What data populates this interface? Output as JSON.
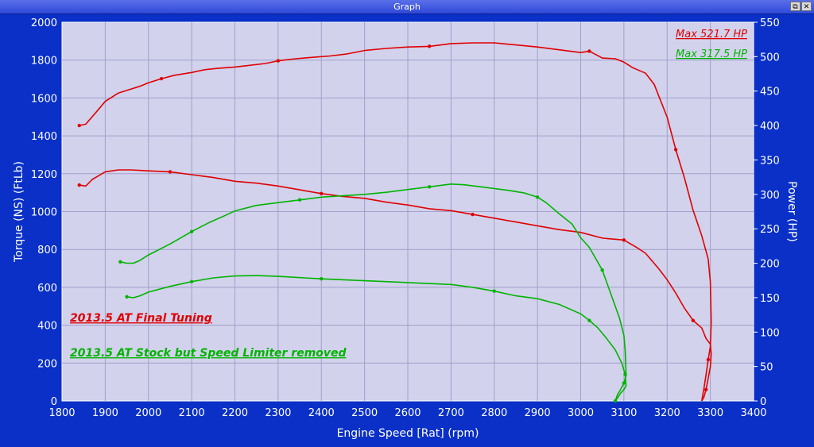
{
  "window": {
    "title": "Graph",
    "restore_glyph": "⧉",
    "close_glyph": "✕"
  },
  "chart_data": {
    "type": "line",
    "xlabel": "Engine Speed [Rat] (rpm)",
    "ylabel_left": "Torque (NS) (FtLb)",
    "ylabel_right": "Power (HP)",
    "xlim": [
      1800,
      3400
    ],
    "ylim_left": [
      0,
      2000
    ],
    "ylim_right": [
      0,
      550
    ],
    "x_ticks": [
      1800,
      1900,
      2000,
      2100,
      2200,
      2300,
      2400,
      2500,
      2600,
      2700,
      2800,
      2900,
      3000,
      3100,
      3200,
      3300,
      3400
    ],
    "y_left_ticks": [
      0,
      200,
      400,
      600,
      800,
      1000,
      1200,
      1400,
      1600,
      1800,
      2000
    ],
    "y_right_ticks": [
      0,
      50,
      100,
      150,
      200,
      250,
      300,
      350,
      400,
      450,
      500,
      550
    ],
    "grid": true,
    "colors": {
      "background": "#0a30c8",
      "plot_bg": "#d2d2ec",
      "grid": "#a0a0cc",
      "final_tuning": "#e00000",
      "stock": "#00b400"
    },
    "max_labels": [
      {
        "text": "Max 521.7 HP",
        "series": "final_tuning"
      },
      {
        "text": "Max 317.5 HP",
        "series": "stock"
      }
    ],
    "annotations": [
      {
        "text": "2013.5 AT Final Tuning",
        "series": "final_tuning"
      },
      {
        "text": "2013.5 AT Stock but Speed Limiter removed",
        "series": "stock"
      }
    ],
    "series": [
      {
        "key": "final_tuning",
        "axis": "right",
        "quantity": "power",
        "x": [
          1840,
          1855,
          1880,
          1900,
          1930,
          1960,
          1980,
          2000,
          2030,
          2060,
          2100,
          2130,
          2160,
          2200,
          2230,
          2270,
          2300,
          2340,
          2380,
          2420,
          2460,
          2500,
          2550,
          2600,
          2650,
          2700,
          2750,
          2800,
          2850,
          2900,
          2950,
          3000,
          3020,
          3050,
          3080,
          3100,
          3120,
          3150,
          3170,
          3200,
          3220,
          3240,
          3260,
          3280,
          3295,
          3300,
          3302,
          3300,
          3295,
          3290,
          3285,
          3280
        ],
        "y": [
          400,
          402,
          420,
          435,
          447,
          453,
          457,
          462,
          468,
          473,
          477,
          481,
          483,
          485,
          487,
          490,
          494,
          497,
          499,
          501,
          504,
          509,
          512,
          514,
          515,
          519,
          520,
          520,
          517,
          514,
          510,
          506,
          508,
          498,
          497,
          492,
          484,
          476,
          460,
          412,
          365,
          324,
          277,
          240,
          206,
          173,
          115,
          79,
          60,
          38,
          18,
          0
        ]
      },
      {
        "key": "final_tuning",
        "axis": "left",
        "quantity": "torque",
        "x": [
          1840,
          1855,
          1870,
          1900,
          1930,
          1960,
          2000,
          2050,
          2100,
          2150,
          2200,
          2250,
          2300,
          2350,
          2400,
          2450,
          2500,
          2550,
          2600,
          2650,
          2700,
          2750,
          2800,
          2850,
          2900,
          2950,
          3000,
          3050,
          3100,
          3130,
          3150,
          3180,
          3200,
          3220,
          3240,
          3260,
          3280,
          3290,
          3300,
          3302,
          3300,
          3295,
          3290,
          3285,
          3280
        ],
        "y": [
          1140,
          1135,
          1170,
          1210,
          1220,
          1220,
          1215,
          1210,
          1195,
          1180,
          1160,
          1150,
          1135,
          1115,
          1095,
          1080,
          1070,
          1050,
          1035,
          1015,
          1005,
          985,
          965,
          945,
          925,
          905,
          890,
          860,
          850,
          810,
          780,
          700,
          640,
          570,
          490,
          425,
          385,
          330,
          300,
          250,
          180,
          120,
          60,
          20,
          0
        ]
      },
      {
        "key": "stock",
        "axis": "right",
        "quantity": "power",
        "x": [
          1935,
          1950,
          1965,
          1980,
          2000,
          2050,
          2100,
          2140,
          2180,
          2200,
          2250,
          2300,
          2350,
          2400,
          2450,
          2500,
          2550,
          2600,
          2650,
          2700,
          2730,
          2780,
          2830,
          2870,
          2900,
          2920,
          2950,
          2980,
          3000,
          3020,
          3050,
          3070,
          3090,
          3100,
          3103,
          3105,
          3100,
          3095,
          3090,
          3085,
          3080
        ],
        "y": [
          202,
          200,
          200,
          204,
          212,
          228,
          246,
          259,
          270,
          276,
          284,
          288,
          292,
          296,
          298,
          300,
          303,
          307,
          311,
          315,
          314,
          310,
          306,
          302,
          296,
          288,
          272,
          257,
          237,
          223,
          190,
          155,
          120,
          95,
          73,
          37,
          26,
          20,
          14,
          9,
          0
        ]
      },
      {
        "key": "stock",
        "axis": "left",
        "quantity": "torque",
        "x": [
          1950,
          1965,
          1980,
          2000,
          2050,
          2100,
          2150,
          2200,
          2250,
          2300,
          2400,
          2500,
          2600,
          2700,
          2750,
          2800,
          2850,
          2900,
          2950,
          3000,
          3020,
          3040,
          3060,
          3080,
          3095,
          3103,
          3105,
          3100,
          3092,
          3085,
          3080
        ],
        "y": [
          550,
          545,
          555,
          575,
          605,
          630,
          650,
          660,
          662,
          658,
          645,
          635,
          625,
          615,
          600,
          580,
          555,
          540,
          510,
          460,
          425,
          385,
          330,
          270,
          200,
          140,
          80,
          60,
          40,
          15,
          0
        ]
      }
    ]
  }
}
